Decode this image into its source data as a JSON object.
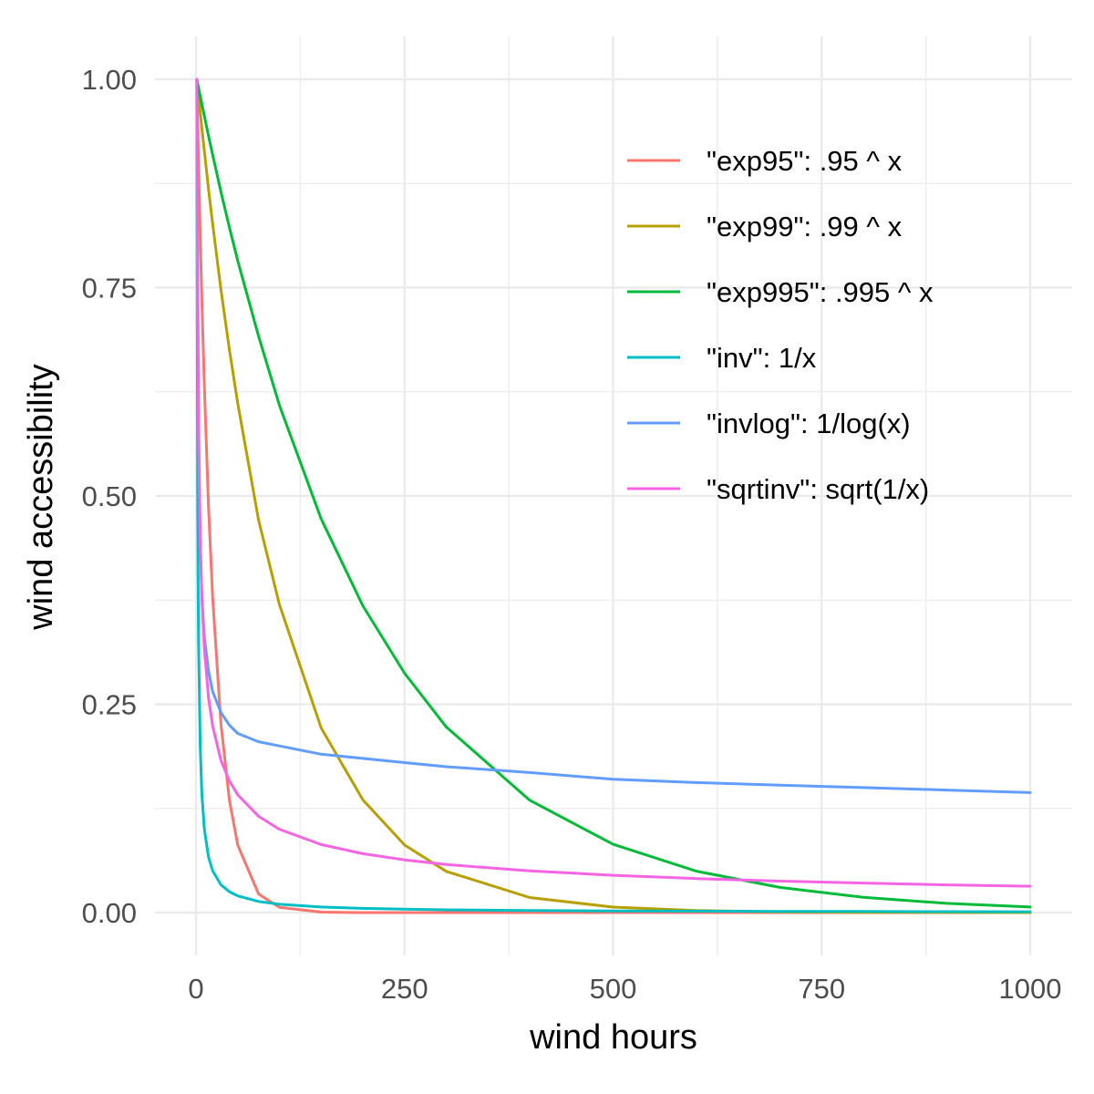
{
  "chart_data": {
    "type": "line",
    "xlabel": "wind hours",
    "ylabel": "wind accessibility",
    "xlim": [
      -20,
      1020
    ],
    "ylim": [
      -0.05,
      1.05
    ],
    "x_ticks": [
      0,
      250,
      500,
      750,
      1000
    ],
    "x_tick_labels": [
      "0",
      "250",
      "500",
      "750",
      "1000"
    ],
    "y_ticks": [
      0,
      0.25,
      0.5,
      0.75,
      1.0
    ],
    "y_tick_labels": [
      "0.00",
      "0.25",
      "0.50",
      "0.75",
      "1.00"
    ],
    "grid": true,
    "legend_position": "top-right inside",
    "x_samples": [
      1,
      2,
      3,
      5,
      7,
      10,
      15,
      20,
      30,
      40,
      50,
      75,
      100,
      150,
      200,
      250,
      300,
      400,
      500,
      600,
      700,
      800,
      900,
      1000
    ],
    "series": [
      {
        "name": "\"exp95\": .95 ^ x",
        "color": "#F8766D",
        "values": [
          1.0,
          0.95,
          0.9025,
          0.8145,
          0.7351,
          0.6302,
          0.4877,
          0.3774,
          0.2259,
          0.1353,
          0.081,
          0.0223,
          0.0062,
          0.0005,
          0.0,
          0.0,
          0.0,
          0.0,
          0.0,
          0.0,
          0.0,
          0.0,
          0.0,
          0.0
        ]
      },
      {
        "name": "\"exp99\": .99 ^ x",
        "color": "#B79F00",
        "values": [
          1.0,
          0.99,
          0.9801,
          0.9606,
          0.9415,
          0.9135,
          0.8687,
          0.8262,
          0.7472,
          0.6757,
          0.6111,
          0.4711,
          0.3697,
          0.2215,
          0.1353,
          0.0811,
          0.0495,
          0.0181,
          0.0066,
          0.0024,
          0.0009,
          0.0003,
          0.0001,
          0.0
        ]
      },
      {
        "name": "\"exp995\": .995 ^ x",
        "color": "#00BA38",
        "values": [
          1.0,
          0.995,
          0.99,
          0.9801,
          0.9704,
          0.9559,
          0.9322,
          0.9091,
          0.8647,
          0.8224,
          0.7822,
          0.6918,
          0.6088,
          0.4724,
          0.3682,
          0.2872,
          0.2228,
          0.1349,
          0.082,
          0.0497,
          0.0302,
          0.0183,
          0.0111,
          0.0067
        ]
      },
      {
        "name": "\"inv\": 1/x",
        "color": "#00BFC4",
        "values": [
          1.0,
          0.5,
          0.3333,
          0.2,
          0.1429,
          0.1,
          0.0667,
          0.05,
          0.0333,
          0.025,
          0.02,
          0.0133,
          0.01,
          0.0067,
          0.005,
          0.004,
          0.0033,
          0.0025,
          0.002,
          0.0017,
          0.0014,
          0.0013,
          0.0011,
          0.001
        ]
      },
      {
        "name": "\"invlog\": 1/log(x)",
        "color": "#619CFF",
        "values": [
          1.0,
          0.8,
          0.6,
          0.45,
          0.38,
          0.33,
          0.29,
          0.265,
          0.24,
          0.225,
          0.215,
          0.205,
          0.2,
          0.19,
          0.185,
          0.18,
          0.175,
          0.168,
          0.16,
          0.156,
          0.153,
          0.15,
          0.147,
          0.144
        ]
      },
      {
        "name": "\"sqrtinv\": sqrt(1/x)",
        "color": "#F564E3",
        "values": [
          1.0,
          0.7071,
          0.5774,
          0.4472,
          0.378,
          0.3162,
          0.2582,
          0.2236,
          0.1826,
          0.1581,
          0.1414,
          0.1155,
          0.1,
          0.0816,
          0.0707,
          0.0632,
          0.0577,
          0.05,
          0.0447,
          0.0408,
          0.0378,
          0.0354,
          0.0333,
          0.0316
        ]
      }
    ]
  }
}
